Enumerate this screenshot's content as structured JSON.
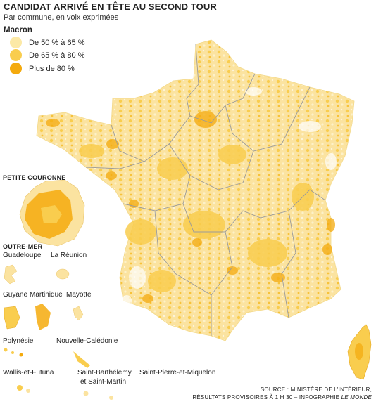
{
  "header": {
    "title": "CANDIDAT ARRIVÉ EN TÊTE AU SECOND TOUR",
    "subtitle": "Par commune, en voix exprimées"
  },
  "legend": {
    "title": "Macron",
    "items": [
      {
        "label": "De 50 % à 65 %",
        "color": "#fce9a6"
      },
      {
        "label": "De 65 % à 80 %",
        "color": "#f9cd4e"
      },
      {
        "label": "Plus de 80 %",
        "color": "#f4aa0d"
      }
    ]
  },
  "insets": {
    "petite_couronne": "PETITE COURONNE",
    "outre_mer": "OUTRE-MER",
    "places": {
      "guadeloupe": "Guadeloupe",
      "reunion": "La Réunion",
      "guyane": "Guyane",
      "martinique": "Martinique",
      "mayotte": "Mayotte",
      "polynesie": "Polynésie",
      "nouvelle_caledonie": "Nouvelle-Calédonie",
      "wallis": "Wallis-et-Futuna",
      "saint_barth_1": "Saint-Barthélemy",
      "saint_barth_2": "et Saint-Martin",
      "spm": "Saint-Pierre-et-Miquelon"
    }
  },
  "source": {
    "line1": "SOURCE : MINISTÈRE DE L'INTÉRIEUR,",
    "line2_prefix": "RÉSULTATS PROVISOIRES À 1 H 30 – INFOGRAPHIE ",
    "line2_italic": "LE MONDE"
  }
}
